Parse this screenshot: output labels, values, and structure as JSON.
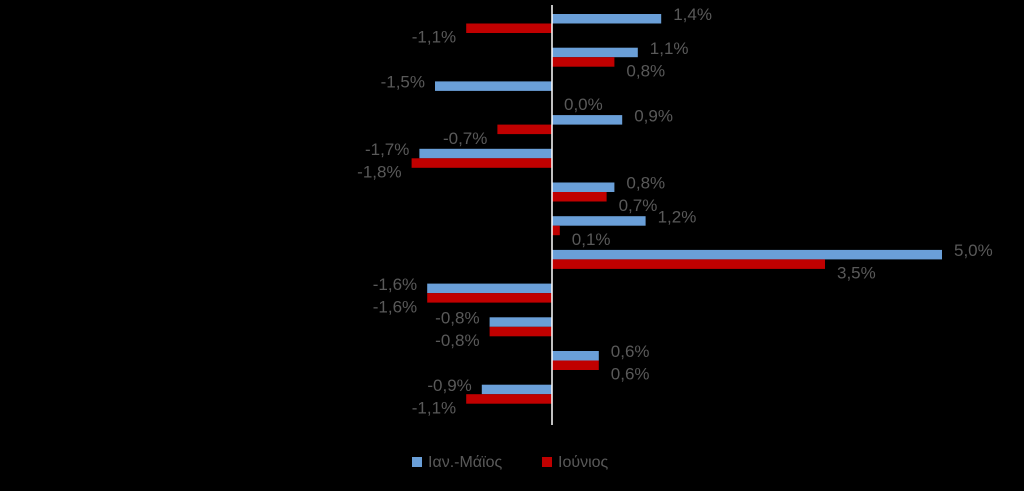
{
  "chart_data": {
    "type": "bar",
    "orientation": "horizontal",
    "categories": [
      null,
      null,
      null,
      null,
      null,
      null,
      null,
      null,
      null,
      null,
      null,
      null
    ],
    "series": [
      {
        "name": "Ιαν.-Μάϊος",
        "color": "#6a9fd8",
        "values": [
          1.4,
          1.1,
          -1.5,
          0.9,
          -1.7,
          0.8,
          1.2,
          5.0,
          -1.6,
          -0.8,
          0.6,
          -0.9
        ],
        "value_labels": [
          "1,4%",
          "1,1%",
          "-1,5%",
          "0,9%",
          "-1,7%",
          "0,8%",
          "1,2%",
          "5,0%",
          "-1,6%",
          "-0,8%",
          "0,6%",
          "-0,9%"
        ]
      },
      {
        "name": "Ιούνιος",
        "color": "#c00000",
        "values": [
          -1.1,
          0.8,
          0.0,
          -0.7,
          -1.8,
          0.7,
          0.1,
          3.5,
          -1.6,
          -0.8,
          0.6,
          -1.1
        ],
        "value_labels": [
          "-1,1%",
          "0,8%",
          "0,0%",
          "-0,7%",
          "-1,8%",
          "0,7%",
          "0,1%",
          "3,5%",
          "-1,6%",
          "-0,8%",
          "0,6%",
          "-1,1%"
        ]
      }
    ],
    "legend": "bottom"
  }
}
